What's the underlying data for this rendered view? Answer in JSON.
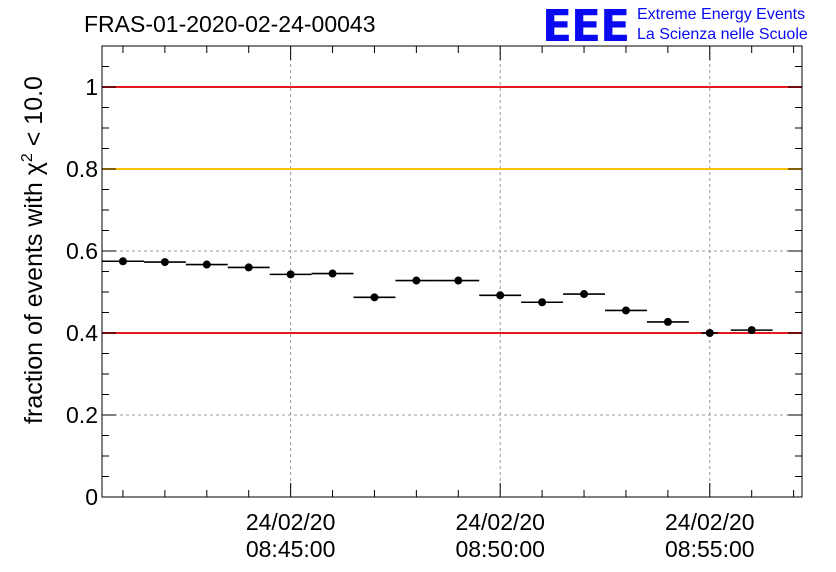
{
  "chart_data": {
    "type": "scatter",
    "title": "FRAS-01-2020-02-24-00043",
    "ylabel": "fraction of events with χ² < 10.0",
    "ylabel_parts": {
      "prefix": "fraction of events with ",
      "symbol": "χ",
      "sup": "2",
      "suffix": " < 10.0"
    },
    "xlabel": "",
    "ylim": [
      0,
      1.1
    ],
    "xlim_minutes": [
      -9.5,
      7.2
    ],
    "x_ticks": [
      {
        "minute": -5,
        "date": "24/02/20",
        "time": "08:45:00"
      },
      {
        "minute": 0,
        "date": "24/02/20",
        "time": "08:50:00"
      },
      {
        "minute": 5,
        "date": "24/02/20",
        "time": "08:55:00"
      }
    ],
    "x_reference_time": "08:50:00",
    "y_ticks": [
      {
        "value": 0,
        "label": "0"
      },
      {
        "value": 0.2,
        "label": "0.2"
      },
      {
        "value": 0.4,
        "label": "0.4"
      },
      {
        "value": 0.6,
        "label": "0.6"
      },
      {
        "value": 0.8,
        "label": "0.8"
      },
      {
        "value": 1,
        "label": "1"
      }
    ],
    "grid": true,
    "reference_lines": [
      {
        "value": 1.0,
        "color": "#e41a1c"
      },
      {
        "value": 0.8,
        "color": "#ffc107"
      },
      {
        "value": 0.4,
        "color": "#e41a1c"
      }
    ],
    "points": [
      {
        "x": -9.0,
        "y": 0.575,
        "xerr": 0.5
      },
      {
        "x": -8.0,
        "y": 0.573,
        "xerr": 0.5
      },
      {
        "x": -7.0,
        "y": 0.567,
        "xerr": 0.5
      },
      {
        "x": -6.0,
        "y": 0.56,
        "xerr": 0.5
      },
      {
        "x": -5.0,
        "y": 0.543,
        "xerr": 0.5
      },
      {
        "x": -4.0,
        "y": 0.545,
        "xerr": 0.5
      },
      {
        "x": -3.0,
        "y": 0.487,
        "xerr": 0.5
      },
      {
        "x": -2.0,
        "y": 0.528,
        "xerr": 0.5
      },
      {
        "x": -1.0,
        "y": 0.528,
        "xerr": 0.5
      },
      {
        "x": 0.0,
        "y": 0.492,
        "xerr": 0.5
      },
      {
        "x": 1.0,
        "y": 0.475,
        "xerr": 0.5
      },
      {
        "x": 2.0,
        "y": 0.495,
        "xerr": 0.5
      },
      {
        "x": 3.0,
        "y": 0.455,
        "xerr": 0.5
      },
      {
        "x": 4.0,
        "y": 0.427,
        "xerr": 0.5
      },
      {
        "x": 5.0,
        "y": 0.4,
        "xerr": 0.2
      },
      {
        "x": 6.0,
        "y": 0.407,
        "xerr": 0.5
      }
    ]
  },
  "logo": {
    "mark": "EEE",
    "line1": "Extreme Energy Events",
    "line2": "La Scienza nelle Scuole",
    "color": "#0a0af0"
  }
}
